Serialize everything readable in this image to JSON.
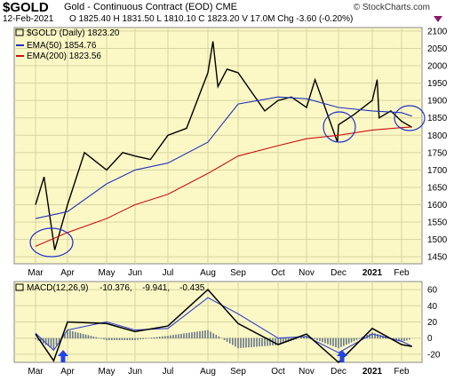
{
  "header": {
    "symbol": "$GOLD",
    "description": "Gold - Continuous Contract (EOD) CME",
    "watermark": "© StockCharts.com",
    "date": "12-Feb-2021",
    "ohlc": "O 1825.40  H 1831.50  L 1810.10  C 1823.20  V 17.0M  Chg -3.60 (-0.20%)"
  },
  "legend": {
    "price": "$GOLD (Daily) 1823.20",
    "ema50": "EMA(50) 1854.76",
    "ema200": "EMA(200) 1823.56",
    "macd_label": "MACD(12,26,9)",
    "macd_v1": "-10.376,",
    "macd_v2": "-9.941,",
    "macd_v3": "-0.435"
  },
  "colors": {
    "panel_bg": "#fbf8c6",
    "price": "#000000",
    "ema50": "#2233bb",
    "ema200": "#cc1111",
    "macd_signal": "#3344cc",
    "histogram": "#667788",
    "annotation_circle": "#2233cc",
    "arrow": "#2244ee"
  },
  "chart_data": [
    {
      "type": "line",
      "title": "$GOLD (Daily)",
      "x_ticks": [
        "Mar",
        "Apr",
        "May",
        "Jun",
        "Jul",
        "Aug",
        "Sep",
        "Oct",
        "Nov",
        "Dec",
        "2021",
        "Feb"
      ],
      "ylim": [
        1430,
        2110
      ],
      "y_ticks": [
        1450,
        1500,
        1550,
        1600,
        1650,
        1700,
        1750,
        1800,
        1850,
        1900,
        1950,
        2000,
        2050,
        2100
      ],
      "grid": true,
      "series": [
        {
          "name": "$GOLD (Daily)",
          "x": [
            "Mar",
            "Mar 9",
            "Mar 19",
            "Apr",
            "Apr 14",
            "May",
            "May 18",
            "Jun",
            "Jun 15",
            "Jul",
            "Jul 15",
            "Aug",
            "Aug 6",
            "Aug 11",
            "Aug 20",
            "Sep",
            "Sep 21",
            "Oct",
            "Oct 15",
            "Nov",
            "Nov 9",
            "Nov 30",
            "Dec",
            "Dec 15",
            "2021",
            "Jan 6",
            "Jan 8",
            "Jan 20",
            "Feb",
            "Feb 12"
          ],
          "values": [
            1600,
            1680,
            1470,
            1600,
            1750,
            1700,
            1750,
            1740,
            1730,
            1800,
            1820,
            1980,
            2070,
            1940,
            1990,
            1980,
            1870,
            1900,
            1910,
            1880,
            1960,
            1780,
            1830,
            1860,
            1900,
            1960,
            1850,
            1870,
            1840,
            1823
          ]
        },
        {
          "name": "EMA(50)",
          "x": [
            "Mar",
            "Apr",
            "May",
            "Jun",
            "Jul",
            "Aug",
            "Sep",
            "Oct",
            "Nov",
            "Dec",
            "2021",
            "Feb",
            "Feb 12"
          ],
          "values": [
            1560,
            1580,
            1660,
            1700,
            1720,
            1780,
            1890,
            1910,
            1905,
            1880,
            1870,
            1865,
            1855
          ]
        },
        {
          "name": "EMA(200)",
          "x": [
            "Mar",
            "Apr",
            "May",
            "Jun",
            "Jul",
            "Aug",
            "Sep",
            "Oct",
            "Nov",
            "Dec",
            "2021",
            "Feb",
            "Feb 12"
          ],
          "values": [
            1480,
            1520,
            1560,
            1600,
            1630,
            1690,
            1740,
            1770,
            1790,
            1800,
            1815,
            1822,
            1824
          ]
        }
      ]
    },
    {
      "type": "line",
      "title": "MACD(12,26,9)",
      "x_ticks": [
        "Mar",
        "Apr",
        "May",
        "Jun",
        "Jul",
        "Aug",
        "Sep",
        "Oct",
        "Nov",
        "Dec",
        "2021",
        "Feb"
      ],
      "ylim": [
        -30,
        70
      ],
      "y_ticks": [
        -20,
        0,
        20,
        40,
        60
      ],
      "series": [
        {
          "name": "MACD",
          "x": [
            "Mar",
            "Mar 18",
            "Apr",
            "May",
            "Jun",
            "Jul",
            "Aug",
            "Sep",
            "Oct",
            "Nov",
            "Dec",
            "2021",
            "Feb",
            "Feb 12"
          ],
          "values": [
            5,
            -28,
            20,
            18,
            8,
            15,
            60,
            18,
            -8,
            5,
            -30,
            12,
            -8,
            -10.376
          ]
        },
        {
          "name": "Signal",
          "x": [
            "Mar",
            "Mar 18",
            "Apr",
            "May",
            "Jun",
            "Jul",
            "Aug",
            "Sep",
            "Oct",
            "Nov",
            "Dec",
            "2021",
            "Feb",
            "Feb 12"
          ],
          "values": [
            6,
            -15,
            10,
            20,
            10,
            12,
            50,
            30,
            0,
            2,
            -18,
            5,
            -4,
            -9.941
          ]
        }
      ]
    }
  ]
}
